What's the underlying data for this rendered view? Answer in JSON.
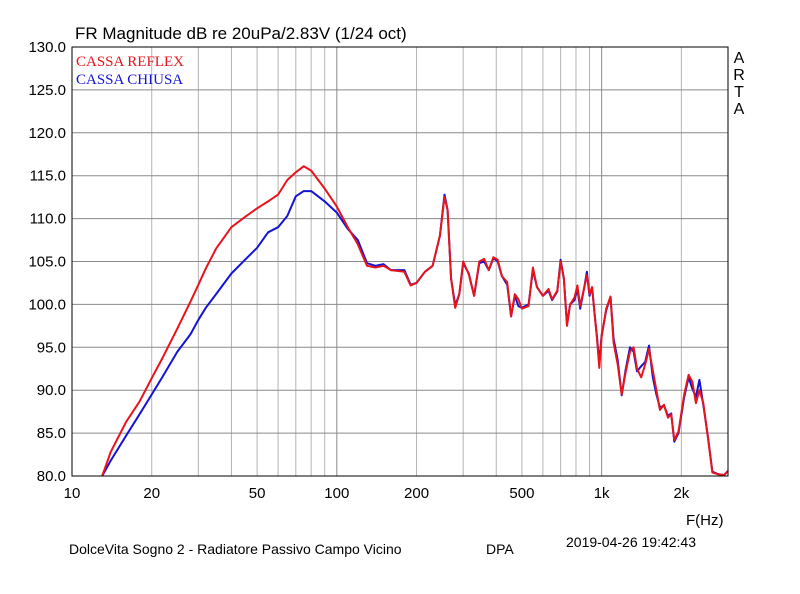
{
  "chart_data": {
    "type": "line",
    "title": "FR Magnitude dB re 20uPa/2.83V (1/24 oct)",
    "xlabel": "F(Hz)",
    "ylabel": "",
    "xscale": "log",
    "xlim": [
      10,
      3000
    ],
    "ylim": [
      80,
      130
    ],
    "grid": true,
    "legend_position": "top-left",
    "x_ticks": [
      {
        "value": 10,
        "label": "10"
      },
      {
        "value": 20,
        "label": "20"
      },
      {
        "value": 50,
        "label": "50"
      },
      {
        "value": 100,
        "label": "100"
      },
      {
        "value": 200,
        "label": "200"
      },
      {
        "value": 500,
        "label": "500"
      },
      {
        "value": 1000,
        "label": "1k"
      },
      {
        "value": 2000,
        "label": "2k"
      }
    ],
    "y_ticks": [
      {
        "value": 130,
        "label": "130.0"
      },
      {
        "value": 125,
        "label": "125.0"
      },
      {
        "value": 120,
        "label": "120.0"
      },
      {
        "value": 115,
        "label": "115.0"
      },
      {
        "value": 110,
        "label": "110.0"
      },
      {
        "value": 105,
        "label": "105.0"
      },
      {
        "value": 100,
        "label": "100.0"
      },
      {
        "value": 95,
        "label": "95.0"
      },
      {
        "value": 90,
        "label": "90.0"
      },
      {
        "value": 85,
        "label": "85.0"
      },
      {
        "value": 80,
        "label": "80.0"
      }
    ],
    "side_label": [
      "A",
      "R",
      "T",
      "A"
    ],
    "series": [
      {
        "name": "CASSA REFLEX",
        "color": "#e8141c",
        "points": [
          [
            13,
            80
          ],
          [
            14,
            82.8
          ],
          [
            16,
            86.3
          ],
          [
            18,
            88.7
          ],
          [
            20,
            91.4
          ],
          [
            22,
            93.8
          ],
          [
            25,
            97.2
          ],
          [
            28,
            100.3
          ],
          [
            30,
            102.3
          ],
          [
            32,
            104.2
          ],
          [
            35,
            106.5
          ],
          [
            40,
            109
          ],
          [
            45,
            110.2
          ],
          [
            50,
            111.2
          ],
          [
            55,
            112
          ],
          [
            60,
            112.8
          ],
          [
            65,
            114.5
          ],
          [
            70,
            115.4
          ],
          [
            75,
            116.1
          ],
          [
            80,
            115.6
          ],
          [
            90,
            113.5
          ],
          [
            100,
            111.4
          ],
          [
            110,
            109
          ],
          [
            120,
            107
          ],
          [
            130,
            104.5
          ],
          [
            140,
            104.3
          ],
          [
            150,
            104.5
          ],
          [
            160,
            104
          ],
          [
            180,
            103.8
          ],
          [
            190,
            102.2
          ],
          [
            200,
            102.5
          ],
          [
            215,
            103.8
          ],
          [
            230,
            104.5
          ],
          [
            245,
            108
          ],
          [
            255,
            112.5
          ],
          [
            262,
            111
          ],
          [
            270,
            103
          ],
          [
            280,
            99.6
          ],
          [
            290,
            101.2
          ],
          [
            300,
            105
          ],
          [
            315,
            103.5
          ],
          [
            330,
            101
          ],
          [
            345,
            105
          ],
          [
            360,
            105.3
          ],
          [
            375,
            104
          ],
          [
            390,
            105.5
          ],
          [
            405,
            105.2
          ],
          [
            420,
            103.3
          ],
          [
            440,
            102.6
          ],
          [
            455,
            98.6
          ],
          [
            470,
            101.2
          ],
          [
            485,
            100.6
          ],
          [
            500,
            99.5
          ],
          [
            530,
            99.8
          ],
          [
            550,
            104.3
          ],
          [
            570,
            102
          ],
          [
            600,
            101
          ],
          [
            630,
            101.8
          ],
          [
            650,
            100.6
          ],
          [
            680,
            101.6
          ],
          [
            700,
            105
          ],
          [
            720,
            103
          ],
          [
            740,
            97.5
          ],
          [
            760,
            100
          ],
          [
            790,
            100.8
          ],
          [
            810,
            102.2
          ],
          [
            830,
            99.8
          ],
          [
            860,
            102
          ],
          [
            880,
            103.4
          ],
          [
            900,
            101.2
          ],
          [
            920,
            102
          ],
          [
            940,
            99
          ],
          [
            960,
            96
          ],
          [
            980,
            92.6
          ],
          [
            1000,
            96.2
          ],
          [
            1040,
            99.5
          ],
          [
            1080,
            100.9
          ],
          [
            1110,
            95.5
          ],
          [
            1150,
            93
          ],
          [
            1190,
            89.5
          ],
          [
            1230,
            92
          ],
          [
            1280,
            94.5
          ],
          [
            1320,
            95
          ],
          [
            1360,
            92.5
          ],
          [
            1410,
            91.5
          ],
          [
            1460,
            93
          ],
          [
            1510,
            94.8
          ],
          [
            1560,
            92.3
          ],
          [
            1610,
            90
          ],
          [
            1660,
            87.7
          ],
          [
            1720,
            88.3
          ],
          [
            1780,
            86.8
          ],
          [
            1830,
            87.2
          ],
          [
            1880,
            84.2
          ],
          [
            1950,
            85.2
          ],
          [
            2050,
            89.5
          ],
          [
            2130,
            91.8
          ],
          [
            2200,
            91
          ],
          [
            2270,
            88.5
          ],
          [
            2340,
            90
          ],
          [
            2420,
            88.5
          ],
          [
            2520,
            84.5
          ],
          [
            2620,
            80.4
          ],
          [
            2760,
            80.2
          ],
          [
            2900,
            80.1
          ],
          [
            3000,
            80.6
          ]
        ]
      },
      {
        "name": "CASSA CHIUSA",
        "color": "#1414d2",
        "points": [
          [
            13,
            80
          ],
          [
            14,
            81.8
          ],
          [
            16,
            84.7
          ],
          [
            18,
            87.2
          ],
          [
            20,
            89.5
          ],
          [
            22,
            91.6
          ],
          [
            25,
            94.5
          ],
          [
            28,
            96.5
          ],
          [
            30,
            98.2
          ],
          [
            32,
            99.6
          ],
          [
            35,
            101.2
          ],
          [
            40,
            103.6
          ],
          [
            45,
            105.2
          ],
          [
            50,
            106.6
          ],
          [
            55,
            108.4
          ],
          [
            60,
            109
          ],
          [
            65,
            110.3
          ],
          [
            70,
            112.6
          ],
          [
            75,
            113.2
          ],
          [
            80,
            113.2
          ],
          [
            90,
            112
          ],
          [
            100,
            110.7
          ],
          [
            110,
            108.8
          ],
          [
            120,
            107.5
          ],
          [
            130,
            104.8
          ],
          [
            140,
            104.5
          ],
          [
            150,
            104.7
          ],
          [
            160,
            104
          ],
          [
            180,
            104
          ],
          [
            190,
            102.3
          ],
          [
            200,
            102.5
          ],
          [
            215,
            103.8
          ],
          [
            230,
            104.5
          ],
          [
            245,
            108
          ],
          [
            255,
            112.8
          ],
          [
            262,
            111
          ],
          [
            270,
            103
          ],
          [
            280,
            99.9
          ],
          [
            290,
            101.2
          ],
          [
            300,
            104.8
          ],
          [
            315,
            103.6
          ],
          [
            330,
            101
          ],
          [
            345,
            104.8
          ],
          [
            360,
            105
          ],
          [
            375,
            104
          ],
          [
            390,
            105.4
          ],
          [
            405,
            105
          ],
          [
            420,
            103.3
          ],
          [
            440,
            102.3
          ],
          [
            455,
            98.6
          ],
          [
            470,
            101
          ],
          [
            485,
            99.8
          ],
          [
            500,
            99.6
          ],
          [
            530,
            100
          ],
          [
            550,
            104
          ],
          [
            570,
            102
          ],
          [
            600,
            101
          ],
          [
            630,
            101.6
          ],
          [
            650,
            100.5
          ],
          [
            680,
            101.5
          ],
          [
            700,
            105.2
          ],
          [
            720,
            103
          ],
          [
            740,
            97.6
          ],
          [
            760,
            100
          ],
          [
            790,
            100.5
          ],
          [
            810,
            101.8
          ],
          [
            830,
            99.5
          ],
          [
            860,
            102
          ],
          [
            880,
            103.8
          ],
          [
            900,
            101
          ],
          [
            920,
            102
          ],
          [
            940,
            99
          ],
          [
            960,
            96.2
          ],
          [
            980,
            93.2
          ],
          [
            1000,
            96.4
          ],
          [
            1040,
            99.3
          ],
          [
            1080,
            100.9
          ],
          [
            1110,
            96
          ],
          [
            1150,
            93.5
          ],
          [
            1190,
            89.4
          ],
          [
            1230,
            92.3
          ],
          [
            1280,
            95
          ],
          [
            1320,
            94.5
          ],
          [
            1360,
            92.2
          ],
          [
            1410,
            92.8
          ],
          [
            1460,
            93.3
          ],
          [
            1510,
            95.2
          ],
          [
            1560,
            91.5
          ],
          [
            1610,
            89.5
          ],
          [
            1660,
            88
          ],
          [
            1720,
            88.2
          ],
          [
            1780,
            87
          ],
          [
            1830,
            87.3
          ],
          [
            1880,
            84
          ],
          [
            1950,
            85
          ],
          [
            2050,
            89.2
          ],
          [
            2130,
            91.5
          ],
          [
            2200,
            90.2
          ],
          [
            2270,
            89.2
          ],
          [
            2340,
            91.2
          ],
          [
            2420,
            88.3
          ],
          [
            2520,
            84.6
          ],
          [
            2620,
            80.5
          ],
          [
            2760,
            80.2
          ],
          [
            2900,
            80.1
          ],
          [
            3000,
            80.6
          ]
        ]
      }
    ]
  },
  "footer": {
    "description": "DolceVita Sogno 2 - Radiatore Passivo Campo Vicino",
    "tag": "DPA",
    "timestamp": "2019-04-26  19:42:43"
  }
}
